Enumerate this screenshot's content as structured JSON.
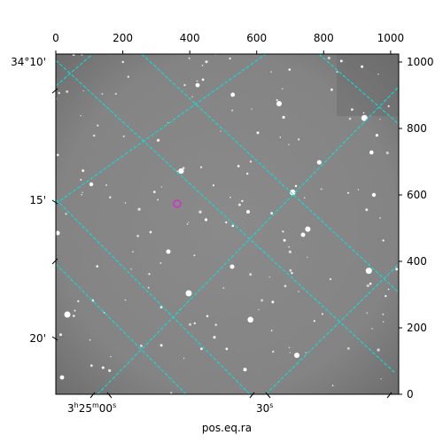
{
  "figure": {
    "xlabel": "pos.eq.ra",
    "top_axis_ticks": [
      "0",
      "200",
      "400",
      "600",
      "800",
      "1000"
    ],
    "right_axis_ticks": [
      "0",
      "200",
      "400",
      "600",
      "800",
      "1000"
    ],
    "dec_ticks": [
      "34°10'",
      "15'",
      "20'"
    ],
    "ra_ticks": {
      "first": {
        "base": "3",
        "h": "h",
        "mid": "25",
        "m": "m",
        "rest": "00",
        "s": "s"
      },
      "second": {
        "base": "30",
        "s": "s"
      }
    }
  },
  "image_view": {
    "background_color": "#858585",
    "grid_color": "#00e5e5",
    "marker_color": "#cc33cc",
    "pixel_range": [
      0,
      1024
    ]
  }
}
